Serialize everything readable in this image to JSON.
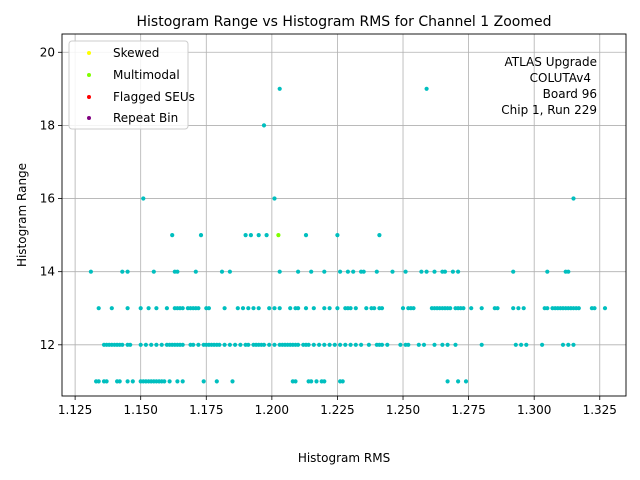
{
  "chart_data": {
    "type": "scatter",
    "title": "Histogram Range vs Histogram RMS for Channel 1 Zoomed",
    "xlabel": "Histogram RMS",
    "ylabel": "Histogram Range",
    "xlim": [
      1.12,
      1.335
    ],
    "ylim": [
      10.6,
      20.5
    ],
    "xticks": [
      1.125,
      1.15,
      1.175,
      1.2,
      1.225,
      1.25,
      1.275,
      1.3,
      1.325
    ],
    "xtick_labels": [
      "1.125",
      "1.150",
      "1.175",
      "1.200",
      "1.225",
      "1.250",
      "1.275",
      "1.300",
      "1.325"
    ],
    "yticks": [
      12,
      14,
      16,
      18,
      20
    ],
    "ytick_labels": [
      "12",
      "14",
      "16",
      "18",
      "20"
    ],
    "grid": true,
    "legend_position": "upper-left",
    "legend": [
      {
        "label": "Skewed",
        "color": "#ffff00"
      },
      {
        "label": "Multimodal",
        "color": "#7fff00"
      },
      {
        "label": "Flagged SEUs",
        "color": "#ff0000"
      },
      {
        "label": "Repeat Bin",
        "color": "#800080"
      }
    ],
    "annotation": [
      "ATLAS Upgrade",
      "COLUTAv4",
      "Board 96",
      "Chip 1, Run 229"
    ],
    "base_color": "#00bfbf",
    "series": [
      {
        "color": "#00bfbf",
        "points": [
          [
            1.131,
            14
          ],
          [
            1.143,
            14
          ],
          [
            1.145,
            14
          ],
          [
            1.155,
            14
          ],
          [
            1.163,
            14
          ],
          [
            1.164,
            14
          ],
          [
            1.171,
            14
          ],
          [
            1.181,
            14
          ],
          [
            1.184,
            14
          ],
          [
            1.203,
            14
          ],
          [
            1.21,
            14
          ],
          [
            1.215,
            14
          ],
          [
            1.22,
            14
          ],
          [
            1.226,
            14
          ],
          [
            1.229,
            14
          ],
          [
            1.231,
            14
          ],
          [
            1.234,
            14
          ],
          [
            1.235,
            14
          ],
          [
            1.24,
            14
          ],
          [
            1.246,
            14
          ],
          [
            1.251,
            14
          ],
          [
            1.257,
            14
          ],
          [
            1.259,
            14
          ],
          [
            1.262,
            14
          ],
          [
            1.265,
            14
          ],
          [
            1.266,
            14
          ],
          [
            1.269,
            14
          ],
          [
            1.271,
            14
          ],
          [
            1.292,
            14
          ],
          [
            1.305,
            14
          ],
          [
            1.312,
            14
          ],
          [
            1.313,
            14
          ],
          [
            1.134,
            13
          ],
          [
            1.139,
            13
          ],
          [
            1.145,
            13
          ],
          [
            1.15,
            13
          ],
          [
            1.153,
            13
          ],
          [
            1.156,
            13
          ],
          [
            1.16,
            13
          ],
          [
            1.163,
            13
          ],
          [
            1.164,
            13
          ],
          [
            1.165,
            13
          ],
          [
            1.166,
            13
          ],
          [
            1.168,
            13
          ],
          [
            1.169,
            13
          ],
          [
            1.17,
            13
          ],
          [
            1.171,
            13
          ],
          [
            1.172,
            13
          ],
          [
            1.175,
            13
          ],
          [
            1.176,
            13
          ],
          [
            1.182,
            13
          ],
          [
            1.187,
            13
          ],
          [
            1.189,
            13
          ],
          [
            1.191,
            13
          ],
          [
            1.193,
            13
          ],
          [
            1.195,
            13
          ],
          [
            1.199,
            13
          ],
          [
            1.201,
            13
          ],
          [
            1.203,
            13
          ],
          [
            1.207,
            13
          ],
          [
            1.209,
            13
          ],
          [
            1.21,
            13
          ],
          [
            1.213,
            13
          ],
          [
            1.216,
            13
          ],
          [
            1.22,
            13
          ],
          [
            1.222,
            13
          ],
          [
            1.225,
            13
          ],
          [
            1.228,
            13
          ],
          [
            1.229,
            13
          ],
          [
            1.23,
            13
          ],
          [
            1.232,
            13
          ],
          [
            1.236,
            13
          ],
          [
            1.238,
            13
          ],
          [
            1.239,
            13
          ],
          [
            1.241,
            13
          ],
          [
            1.242,
            13
          ],
          [
            1.25,
            13
          ],
          [
            1.252,
            13
          ],
          [
            1.253,
            13
          ],
          [
            1.254,
            13
          ],
          [
            1.261,
            13
          ],
          [
            1.262,
            13
          ],
          [
            1.263,
            13
          ],
          [
            1.264,
            13
          ],
          [
            1.265,
            13
          ],
          [
            1.266,
            13
          ],
          [
            1.267,
            13
          ],
          [
            1.268,
            13
          ],
          [
            1.27,
            13
          ],
          [
            1.271,
            13
          ],
          [
            1.272,
            13
          ],
          [
            1.273,
            13
          ],
          [
            1.276,
            13
          ],
          [
            1.28,
            13
          ],
          [
            1.285,
            13
          ],
          [
            1.286,
            13
          ],
          [
            1.292,
            13
          ],
          [
            1.294,
            13
          ],
          [
            1.296,
            13
          ],
          [
            1.304,
            13
          ],
          [
            1.305,
            13
          ],
          [
            1.307,
            13
          ],
          [
            1.308,
            13
          ],
          [
            1.309,
            13
          ],
          [
            1.31,
            13
          ],
          [
            1.311,
            13
          ],
          [
            1.312,
            13
          ],
          [
            1.313,
            13
          ],
          [
            1.314,
            13
          ],
          [
            1.315,
            13
          ],
          [
            1.316,
            13
          ],
          [
            1.317,
            13
          ],
          [
            1.322,
            13
          ],
          [
            1.323,
            13
          ],
          [
            1.327,
            13
          ],
          [
            1.136,
            12
          ],
          [
            1.137,
            12
          ],
          [
            1.138,
            12
          ],
          [
            1.139,
            12
          ],
          [
            1.14,
            12
          ],
          [
            1.141,
            12
          ],
          [
            1.142,
            12
          ],
          [
            1.143,
            12
          ],
          [
            1.145,
            12
          ],
          [
            1.146,
            12
          ],
          [
            1.15,
            12
          ],
          [
            1.152,
            12
          ],
          [
            1.154,
            12
          ],
          [
            1.156,
            12
          ],
          [
            1.158,
            12
          ],
          [
            1.16,
            12
          ],
          [
            1.161,
            12
          ],
          [
            1.162,
            12
          ],
          [
            1.163,
            12
          ],
          [
            1.164,
            12
          ],
          [
            1.165,
            12
          ],
          [
            1.166,
            12
          ],
          [
            1.169,
            12
          ],
          [
            1.17,
            12
          ],
          [
            1.172,
            12
          ],
          [
            1.174,
            12
          ],
          [
            1.175,
            12
          ],
          [
            1.176,
            12
          ],
          [
            1.177,
            12
          ],
          [
            1.178,
            12
          ],
          [
            1.179,
            12
          ],
          [
            1.18,
            12
          ],
          [
            1.182,
            12
          ],
          [
            1.184,
            12
          ],
          [
            1.186,
            12
          ],
          [
            1.188,
            12
          ],
          [
            1.19,
            12
          ],
          [
            1.191,
            12
          ],
          [
            1.193,
            12
          ],
          [
            1.194,
            12
          ],
          [
            1.195,
            12
          ],
          [
            1.196,
            12
          ],
          [
            1.197,
            12
          ],
          [
            1.199,
            12
          ],
          [
            1.201,
            12
          ],
          [
            1.203,
            12
          ],
          [
            1.204,
            12
          ],
          [
            1.205,
            12
          ],
          [
            1.206,
            12
          ],
          [
            1.207,
            12
          ],
          [
            1.208,
            12
          ],
          [
            1.209,
            12
          ],
          [
            1.21,
            12
          ],
          [
            1.212,
            12
          ],
          [
            1.213,
            12
          ],
          [
            1.214,
            12
          ],
          [
            1.216,
            12
          ],
          [
            1.218,
            12
          ],
          [
            1.22,
            12
          ],
          [
            1.222,
            12
          ],
          [
            1.224,
            12
          ],
          [
            1.226,
            12
          ],
          [
            1.228,
            12
          ],
          [
            1.23,
            12
          ],
          [
            1.232,
            12
          ],
          [
            1.234,
            12
          ],
          [
            1.237,
            12
          ],
          [
            1.24,
            12
          ],
          [
            1.241,
            12
          ],
          [
            1.242,
            12
          ],
          [
            1.244,
            12
          ],
          [
            1.249,
            12
          ],
          [
            1.251,
            12
          ],
          [
            1.252,
            12
          ],
          [
            1.256,
            12
          ],
          [
            1.258,
            12
          ],
          [
            1.262,
            12
          ],
          [
            1.265,
            12
          ],
          [
            1.267,
            12
          ],
          [
            1.27,
            12
          ],
          [
            1.28,
            12
          ],
          [
            1.293,
            12
          ],
          [
            1.295,
            12
          ],
          [
            1.297,
            12
          ],
          [
            1.303,
            12
          ],
          [
            1.311,
            12
          ],
          [
            1.313,
            12
          ],
          [
            1.315,
            12
          ],
          [
            1.133,
            11
          ],
          [
            1.134,
            11
          ],
          [
            1.136,
            11
          ],
          [
            1.137,
            11
          ],
          [
            1.141,
            11
          ],
          [
            1.142,
            11
          ],
          [
            1.145,
            11
          ],
          [
            1.147,
            11
          ],
          [
            1.15,
            11
          ],
          [
            1.151,
            11
          ],
          [
            1.152,
            11
          ],
          [
            1.153,
            11
          ],
          [
            1.154,
            11
          ],
          [
            1.155,
            11
          ],
          [
            1.156,
            11
          ],
          [
            1.157,
            11
          ],
          [
            1.158,
            11
          ],
          [
            1.159,
            11
          ],
          [
            1.161,
            11
          ],
          [
            1.164,
            11
          ],
          [
            1.166,
            11
          ],
          [
            1.174,
            11
          ],
          [
            1.179,
            11
          ],
          [
            1.185,
            11
          ],
          [
            1.208,
            11
          ],
          [
            1.209,
            11
          ],
          [
            1.214,
            11
          ],
          [
            1.215,
            11
          ],
          [
            1.217,
            11
          ],
          [
            1.219,
            11
          ],
          [
            1.22,
            11
          ],
          [
            1.226,
            11
          ],
          [
            1.227,
            11
          ],
          [
            1.267,
            11
          ],
          [
            1.271,
            11
          ],
          [
            1.274,
            11
          ],
          [
            1.151,
            16
          ],
          [
            1.201,
            16
          ],
          [
            1.315,
            16
          ],
          [
            1.162,
            15
          ],
          [
            1.173,
            15
          ],
          [
            1.19,
            15
          ],
          [
            1.192,
            15
          ],
          [
            1.195,
            15
          ],
          [
            1.198,
            15
          ],
          [
            1.213,
            15
          ],
          [
            1.225,
            15
          ],
          [
            1.241,
            15
          ],
          [
            1.197,
            18
          ],
          [
            1.203,
            19
          ],
          [
            1.259,
            19
          ]
        ]
      },
      {
        "name": "Multimodal",
        "color": "#7fff00",
        "points": [
          [
            1.2025,
            15
          ]
        ]
      }
    ]
  }
}
